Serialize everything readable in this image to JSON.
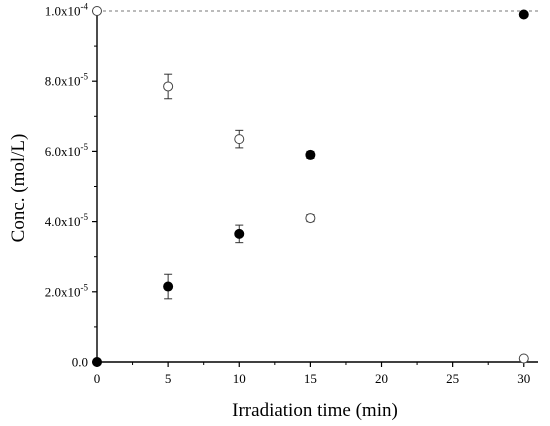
{
  "chart_data": {
    "type": "scatter",
    "title": "",
    "xlabel": "Irradiation time (min)",
    "ylabel": "Conc. (mol/L)",
    "xlim": [
      0,
      31
    ],
    "ylim": [
      0,
      0.0001
    ],
    "x_ticks": [
      0,
      5,
      10,
      15,
      20,
      25,
      30
    ],
    "x_tick_labels": [
      "0",
      "5",
      "10",
      "15",
      "20",
      "25",
      "30"
    ],
    "y_ticks": [
      0,
      2e-05,
      4e-05,
      6e-05,
      8e-05,
      0.0001
    ],
    "y_tick_labels": [
      {
        "mant": "0.0",
        "exp": ""
      },
      {
        "mant": "2.0x10",
        "exp": "-5"
      },
      {
        "mant": "4.0x10",
        "exp": "-5"
      },
      {
        "mant": "6.0x10",
        "exp": "-5"
      },
      {
        "mant": "8.0x10",
        "exp": "-5"
      },
      {
        "mant": "1.0x10",
        "exp": "-4"
      }
    ],
    "reference_line": {
      "y": 0.0001,
      "style": "dotted"
    },
    "grid": false,
    "series": [
      {
        "marker": "open-circle",
        "points": [
          {
            "x": 0,
            "y": 0.0001,
            "err": 0
          },
          {
            "x": 5,
            "y": 7.85e-05,
            "err": 3.5e-06
          },
          {
            "x": 10,
            "y": 6.35e-05,
            "err": 2.5e-06
          },
          {
            "x": 15,
            "y": 4.1e-05,
            "err": 1e-06
          },
          {
            "x": 30,
            "y": 1e-06,
            "err": 0
          }
        ]
      },
      {
        "marker": "filled-circle",
        "points": [
          {
            "x": 0,
            "y": 0,
            "err": 0
          },
          {
            "x": 5,
            "y": 2.15e-05,
            "err": 3.5e-06
          },
          {
            "x": 10,
            "y": 3.65e-05,
            "err": 2.5e-06
          },
          {
            "x": 15,
            "y": 5.9e-05,
            "err": 1e-06
          },
          {
            "x": 30,
            "y": 9.9e-05,
            "err": 0
          }
        ]
      }
    ]
  }
}
